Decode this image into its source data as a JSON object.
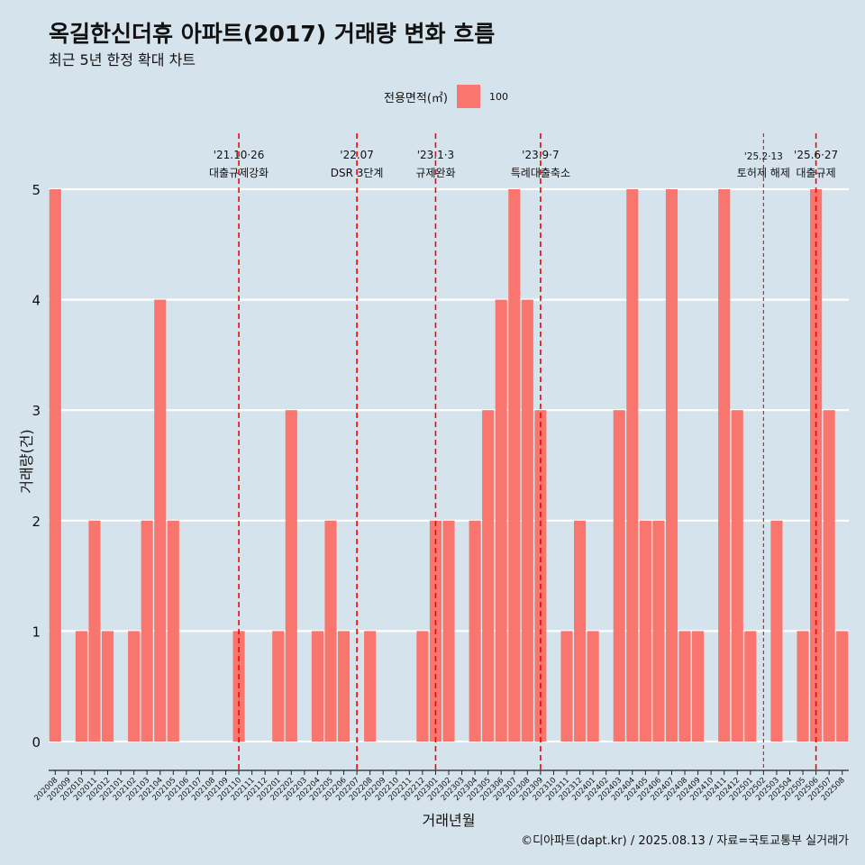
{
  "title": "옥길한신더휴 아파트(2017) 거래량 변화 흐름",
  "subtitle": "최근 5년 한정 확대 차트",
  "caption": "©디아파트(dapt.kr) / 2025.08.13 / 자료=국토교통부 실거래가",
  "legend": {
    "title": "전용면적(㎡)",
    "label": "100"
  },
  "colors": {
    "bar": "#f8766d",
    "background": "#d5e3ec",
    "grid": "#ffffff",
    "vline": "#ff0000"
  },
  "chart_data": {
    "type": "bar",
    "title": "옥길한신더휴 아파트(2017) 거래량 변화 흐름",
    "subtitle": "최근 5년 한정 확대 차트",
    "xlabel": "거래년월",
    "ylabel": "거래량(건)",
    "ylim": [
      0,
      5
    ],
    "yticks": [
      0,
      1,
      2,
      3,
      4,
      5
    ],
    "grid": true,
    "legend_position": "top",
    "categories": [
      "202008",
      "202009",
      "202010",
      "202011",
      "202012",
      "202101",
      "202102",
      "202103",
      "202104",
      "202105",
      "202106",
      "202107",
      "202108",
      "202109",
      "202110",
      "202111",
      "202112",
      "202201",
      "202202",
      "202203",
      "202204",
      "202205",
      "202206",
      "202207",
      "202208",
      "202209",
      "202210",
      "202211",
      "202212",
      "202301",
      "202302",
      "202303",
      "202304",
      "202305",
      "202306",
      "202307",
      "202308",
      "202309",
      "202310",
      "202311",
      "202312",
      "202401",
      "202402",
      "202403",
      "202404",
      "202405",
      "202406",
      "202407",
      "202408",
      "202409",
      "202410",
      "202411",
      "202412",
      "202501",
      "202502",
      "202503",
      "202504",
      "202505",
      "202506",
      "202507",
      "202508"
    ],
    "series": [
      {
        "name": "100",
        "values": [
          5,
          0,
          1,
          2,
          1,
          0,
          1,
          2,
          4,
          2,
          0,
          0,
          0,
          0,
          1,
          0,
          0,
          1,
          3,
          0,
          1,
          2,
          1,
          0,
          1,
          0,
          0,
          0,
          1,
          2,
          2,
          0,
          2,
          3,
          4,
          5,
          4,
          3,
          0,
          1,
          2,
          1,
          0,
          3,
          5,
          2,
          2,
          5,
          1,
          1,
          0,
          5,
          3,
          1,
          0,
          2,
          0,
          1,
          5,
          3,
          1
        ]
      }
    ],
    "annotations": [
      {
        "at": "202110",
        "date": "'21.10·26",
        "text": "대출규제강화",
        "style": "major"
      },
      {
        "at": "202207",
        "date": "'22.07",
        "text": "DSR 3단계",
        "style": "major"
      },
      {
        "at": "202301",
        "date": "'23.1·3",
        "text": "규제완화",
        "style": "major"
      },
      {
        "at": "202309",
        "date": "'23.9·7",
        "text": "특례대출축소",
        "style": "major"
      },
      {
        "at": "202502",
        "date": "'25.2·13",
        "text": "토허제 해제",
        "style": "minor"
      },
      {
        "at": "202506",
        "date": "'25.6·27",
        "text": "대출규제",
        "style": "major"
      }
    ]
  }
}
